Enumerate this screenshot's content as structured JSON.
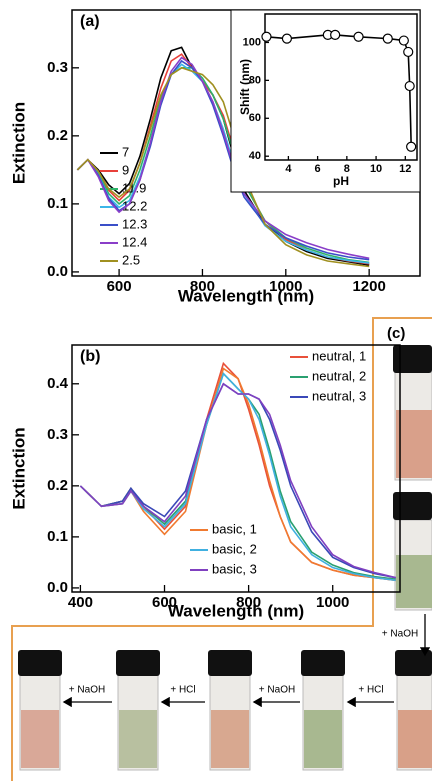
{
  "chart_data": [
    {
      "type": "line",
      "panel_label": "(a)",
      "x_label": "Wavelength (nm)",
      "y_label": "Extinction",
      "xlim": [
        487,
        1322
      ],
      "ylim": [
        -0.006,
        0.385
      ],
      "xticks": [
        600,
        800,
        1000,
        1200
      ],
      "yticks": [
        {
          "value": 0,
          "label": "0.0"
        },
        0.1,
        0.2,
        0.3
      ],
      "x": [
        500,
        525,
        550,
        575,
        600,
        625,
        650,
        675,
        700,
        725,
        750,
        775,
        800,
        825,
        850,
        875,
        900,
        950,
        1000,
        1050,
        1100,
        1150,
        1200
      ],
      "series": [
        {
          "name": "7",
          "color": "#000000",
          "values": [
            0.15,
            0.165,
            0.15,
            0.128,
            0.115,
            0.13,
            0.17,
            0.225,
            0.285,
            0.325,
            0.33,
            0.3,
            0.28,
            0.26,
            0.225,
            0.17,
            0.12,
            0.07,
            0.045,
            0.03,
            0.02,
            0.015,
            0.01
          ]
        },
        {
          "name": "9",
          "color": "#e8403a",
          "values": [
            0.15,
            0.165,
            0.148,
            0.12,
            0.105,
            0.12,
            0.16,
            0.215,
            0.27,
            0.31,
            0.32,
            0.3,
            0.28,
            0.26,
            0.23,
            0.18,
            0.13,
            0.075,
            0.048,
            0.032,
            0.022,
            0.016,
            0.012
          ]
        },
        {
          "name": "11.9",
          "color": "#2db36a",
          "values": [
            0.15,
            0.165,
            0.145,
            0.115,
            0.1,
            0.112,
            0.15,
            0.2,
            0.255,
            0.29,
            0.3,
            0.3,
            0.285,
            0.26,
            0.225,
            0.175,
            0.13,
            0.075,
            0.05,
            0.035,
            0.025,
            0.018,
            0.014
          ]
        },
        {
          "name": "12.2",
          "color": "#3cb6e8",
          "values": [
            0.15,
            0.165,
            0.143,
            0.11,
            0.095,
            0.105,
            0.14,
            0.19,
            0.25,
            0.29,
            0.305,
            0.295,
            0.28,
            0.25,
            0.21,
            0.16,
            0.115,
            0.068,
            0.045,
            0.032,
            0.022,
            0.017,
            0.013
          ]
        },
        {
          "name": "12.3",
          "color": "#3a4fc8",
          "values": [
            0.15,
            0.165,
            0.142,
            0.108,
            0.09,
            0.1,
            0.135,
            0.185,
            0.245,
            0.29,
            0.31,
            0.3,
            0.28,
            0.245,
            0.2,
            0.15,
            0.11,
            0.07,
            0.05,
            0.038,
            0.028,
            0.022,
            0.018
          ]
        },
        {
          "name": "12.4",
          "color": "#8a3ec8",
          "values": [
            0.15,
            0.165,
            0.14,
            0.105,
            0.088,
            0.1,
            0.135,
            0.19,
            0.25,
            0.295,
            0.315,
            0.305,
            0.28,
            0.25,
            0.205,
            0.155,
            0.115,
            0.075,
            0.055,
            0.043,
            0.033,
            0.026,
            0.02
          ]
        },
        {
          "name": "2.5",
          "color": "#a09020",
          "values": [
            0.15,
            0.165,
            0.148,
            0.122,
            0.11,
            0.122,
            0.16,
            0.21,
            0.26,
            0.29,
            0.3,
            0.295,
            0.29,
            0.275,
            0.25,
            0.2,
            0.14,
            0.07,
            0.04,
            0.025,
            0.016,
            0.012,
            0.008
          ]
        }
      ]
    },
    {
      "type": "line",
      "x_label": "pH",
      "y_label": "Shift (nm)",
      "marker": "circle-open",
      "xlim": [
        2.4,
        12.8
      ],
      "ylim": [
        38,
        115
      ],
      "xticks": [
        4,
        6,
        8,
        10,
        12
      ],
      "yticks": [
        40,
        60,
        80,
        100
      ],
      "x": [
        2.5,
        3.9,
        6.7,
        7.2,
        8.8,
        10.8,
        11.9,
        12.2,
        12.3,
        12.4
      ],
      "series": [
        {
          "color": "#000000",
          "values": [
            103,
            102,
            104,
            104,
            103,
            102,
            101,
            95,
            77,
            45
          ]
        }
      ]
    },
    {
      "type": "line",
      "panel_label": "(b)",
      "x_label": "Wavelength (nm)",
      "y_label": "Extinction",
      "xlim": [
        380,
        1160
      ],
      "ylim": [
        -0.008,
        0.476
      ],
      "xticks": [
        400,
        600,
        800,
        1000
      ],
      "yticks": [
        {
          "value": 0,
          "label": "0.0"
        },
        0.1,
        0.2,
        0.3,
        0.4
      ],
      "x": [
        400,
        450,
        500,
        520,
        550,
        600,
        650,
        700,
        740,
        775,
        800,
        825,
        850,
        875,
        900,
        950,
        1000,
        1050,
        1100,
        1150
      ],
      "series": [
        {
          "name": "neutral, 1",
          "color": "#e8503a",
          "values": [
            0.2,
            0.16,
            0.17,
            0.195,
            0.16,
            0.115,
            0.16,
            0.33,
            0.44,
            0.41,
            0.35,
            0.28,
            0.2,
            0.14,
            0.09,
            0.05,
            0.035,
            0.025,
            0.02,
            0.015
          ]
        },
        {
          "name": "neutral, 2",
          "color": "#2aa070",
          "values": [
            0.2,
            0.16,
            0.17,
            0.195,
            0.16,
            0.125,
            0.17,
            0.32,
            0.42,
            0.39,
            0.37,
            0.34,
            0.27,
            0.19,
            0.13,
            0.07,
            0.045,
            0.03,
            0.022,
            0.017
          ]
        },
        {
          "name": "neutral, 3",
          "color": "#3a48b8",
          "values": [
            0.2,
            0.16,
            0.17,
            0.195,
            0.165,
            0.14,
            0.19,
            0.33,
            0.4,
            0.38,
            0.38,
            0.37,
            0.33,
            0.27,
            0.2,
            0.11,
            0.06,
            0.04,
            0.028,
            0.02
          ]
        },
        {
          "name": "basic, 1",
          "color": "#f07a30",
          "values": [
            0.2,
            0.16,
            0.165,
            0.19,
            0.15,
            0.105,
            0.15,
            0.32,
            0.43,
            0.41,
            0.36,
            0.29,
            0.21,
            0.14,
            0.09,
            0.05,
            0.035,
            0.025,
            0.02,
            0.015
          ]
        },
        {
          "name": "basic, 2",
          "color": "#40b0e0",
          "values": [
            0.2,
            0.16,
            0.165,
            0.19,
            0.155,
            0.12,
            0.165,
            0.32,
            0.42,
            0.39,
            0.37,
            0.33,
            0.26,
            0.18,
            0.12,
            0.065,
            0.04,
            0.028,
            0.02,
            0.015
          ]
        },
        {
          "name": "basic, 3",
          "color": "#8040c0",
          "values": [
            0.2,
            0.16,
            0.165,
            0.19,
            0.16,
            0.13,
            0.18,
            0.33,
            0.4,
            0.38,
            0.38,
            0.37,
            0.34,
            0.28,
            0.21,
            0.12,
            0.065,
            0.042,
            0.03,
            0.02
          ]
        }
      ]
    }
  ],
  "panel_c": {
    "label": "(c)",
    "down_step": "+ NaOH",
    "row_steps": [
      "+ NaOH",
      "+ HCl",
      "+ NaOH",
      "+ HCl"
    ]
  }
}
